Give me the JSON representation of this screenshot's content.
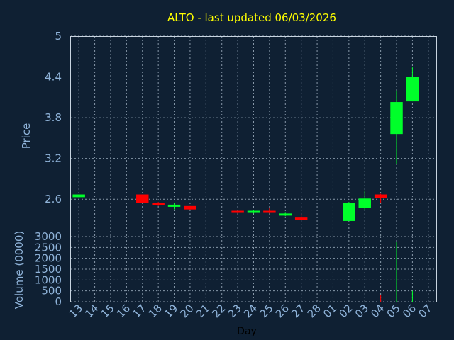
{
  "chart_data": {
    "type": "candlestick",
    "title": "ALTO - last updated 06/03/2026",
    "xlabel": "Day",
    "ylabel": "Price",
    "volume_label": "Volume (0000)",
    "grid": true,
    "colors": {
      "up": "#00ff2a",
      "down": "#ff0000",
      "background": "#0f2033",
      "title": "#ffff00",
      "axis_text": "#8fb3d9"
    },
    "price_ylim": [
      2.05,
      5.0
    ],
    "price_ticks": [
      "2.6",
      "3.2",
      "3.8",
      "4.4",
      "5"
    ],
    "volume_ylim": [
      0,
      3000
    ],
    "volume_ticks": [
      "0",
      "500",
      "1000",
      "1500",
      "2000",
      "2500",
      "3000"
    ],
    "x_ticks": [
      "13",
      "14",
      "15",
      "16",
      "17",
      "18",
      "19",
      "20",
      "21",
      "22",
      "23",
      "24",
      "25",
      "26",
      "27",
      "28",
      "01",
      "02",
      "03",
      "04",
      "05",
      "06",
      "07"
    ],
    "candles": [
      {
        "day": "13",
        "open": 2.63,
        "close": 2.67,
        "high": 2.67,
        "low": 2.63,
        "volume": 0
      },
      {
        "day": "17",
        "open": 2.67,
        "close": 2.55,
        "high": 2.67,
        "low": 2.55,
        "volume": 0
      },
      {
        "day": "18",
        "open": 2.55,
        "close": 2.51,
        "high": 2.56,
        "low": 2.5,
        "volume": 0
      },
      {
        "day": "19",
        "open": 2.5,
        "close": 2.52,
        "high": 2.54,
        "low": 2.45,
        "volume": 0
      },
      {
        "day": "20",
        "open": 2.5,
        "close": 2.45,
        "high": 2.5,
        "low": 2.44,
        "volume": 0
      },
      {
        "day": "23",
        "open": 2.43,
        "close": 2.4,
        "high": 2.43,
        "low": 2.39,
        "volume": 0
      },
      {
        "day": "24",
        "open": 2.4,
        "close": 2.43,
        "high": 2.44,
        "low": 2.39,
        "volume": 0
      },
      {
        "day": "25",
        "open": 2.43,
        "close": 2.4,
        "high": 2.47,
        "low": 2.39,
        "volume": 0
      },
      {
        "day": "26",
        "open": 2.37,
        "close": 2.39,
        "high": 2.4,
        "low": 2.35,
        "volume": 0
      },
      {
        "day": "27",
        "open": 2.33,
        "close": 2.31,
        "high": 2.38,
        "low": 2.3,
        "volume": 0
      },
      {
        "day": "02",
        "open": 2.28,
        "close": 2.55,
        "high": 2.56,
        "low": 2.28,
        "volume": 0
      },
      {
        "day": "03",
        "open": 2.47,
        "close": 2.61,
        "high": 2.73,
        "low": 2.44,
        "volume": 0
      },
      {
        "day": "04",
        "open": 2.67,
        "close": 2.62,
        "high": 2.68,
        "low": 2.55,
        "volume": 300
      },
      {
        "day": "05",
        "open": 3.56,
        "close": 4.03,
        "high": 4.2,
        "low": 3.12,
        "volume": 2750
      },
      {
        "day": "06",
        "open": 4.04,
        "close": 4.4,
        "high": 4.54,
        "low": 4.04,
        "volume": 500
      }
    ]
  }
}
